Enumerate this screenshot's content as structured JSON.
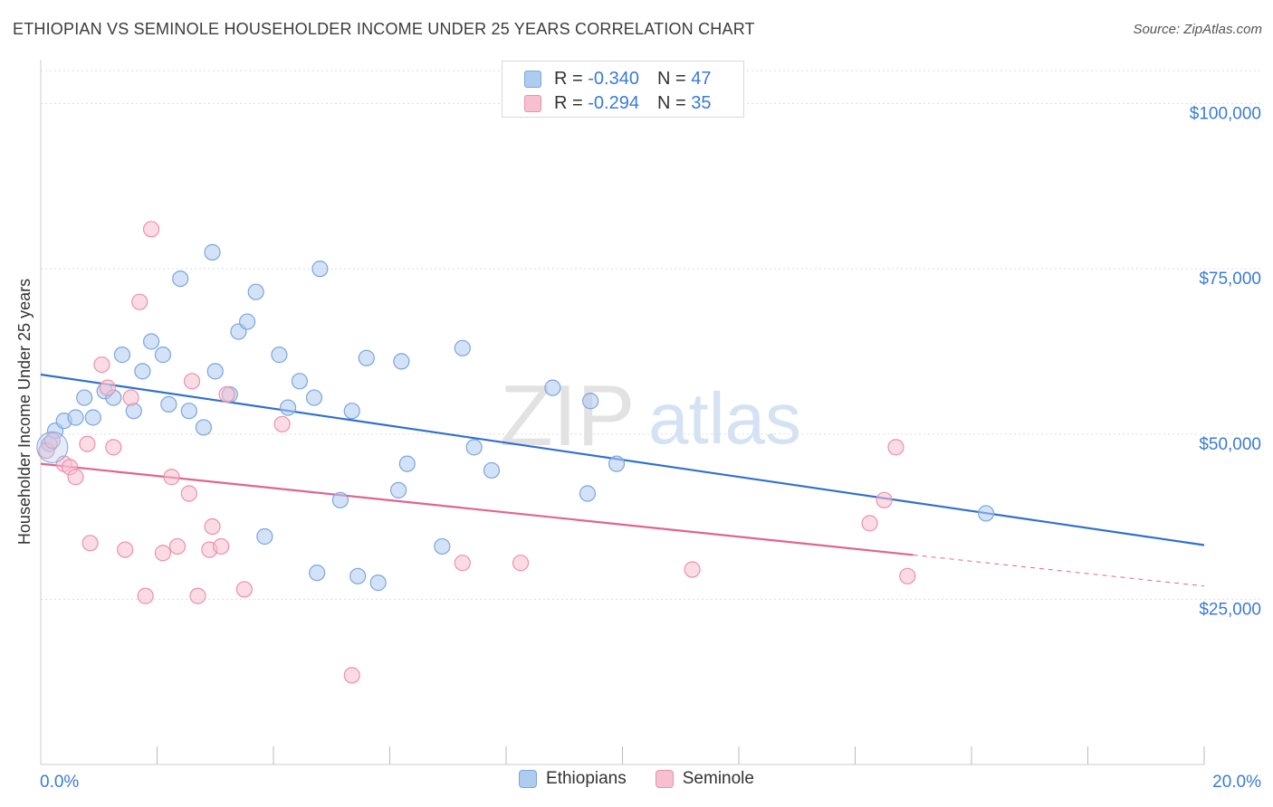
{
  "title": "ETHIOPIAN VS SEMINOLE HOUSEHOLDER INCOME UNDER 25 YEARS CORRELATION CHART",
  "source": "Source: ZipAtlas.com",
  "watermark": {
    "zip": "ZIP",
    "atlas": "atlas"
  },
  "colors": {
    "blue_fill": "#aecbf0",
    "blue_stroke": "#7ba6dd",
    "blue_line": "#2f6fd1",
    "pink_fill": "#f7c0d0",
    "pink_stroke": "#ec90ab",
    "pink_line": "#e0648f",
    "axis_text": "#3a7bd5",
    "grid": "#dddddd"
  },
  "legend": {
    "rows": [
      {
        "r_label": "R =",
        "r_value": "-0.340",
        "n_label": "N =",
        "n_value": "47"
      },
      {
        "r_label": "R =",
        "r_value": "-0.294",
        "n_label": "N =",
        "n_value": "35"
      }
    ]
  },
  "chart_data": {
    "type": "scatter",
    "title": "ETHIOPIAN VS SEMINOLE HOUSEHOLDER INCOME UNDER 25 YEARS CORRELATION CHART",
    "xlabel": "",
    "ylabel": "Householder Income Under 25 years",
    "xlim": [
      0,
      20
    ],
    "ylim": [
      0,
      105000
    ],
    "x_tick_labels": [
      "0.0%",
      "20.0%"
    ],
    "y_ticks": [
      25000,
      50000,
      75000,
      100000
    ],
    "y_tick_labels": [
      "$25,000",
      "$50,000",
      "$75,000",
      "$100,000"
    ],
    "grid": true,
    "legend_position": "top-center",
    "series": [
      {
        "name": "Ethiopians",
        "points": [
          [
            0.15,
            48500
          ],
          [
            0.25,
            50500
          ],
          [
            0.4,
            52000
          ],
          [
            0.6,
            52500
          ],
          [
            0.75,
            55500
          ],
          [
            0.9,
            52500
          ],
          [
            1.1,
            56500
          ],
          [
            1.25,
            55500
          ],
          [
            1.4,
            62000
          ],
          [
            1.6,
            53500
          ],
          [
            1.75,
            59500
          ],
          [
            1.9,
            64000
          ],
          [
            2.1,
            62000
          ],
          [
            2.2,
            54500
          ],
          [
            2.4,
            73500
          ],
          [
            2.55,
            53500
          ],
          [
            2.8,
            51000
          ],
          [
            2.95,
            77500
          ],
          [
            3.0,
            59500
          ],
          [
            3.25,
            56000
          ],
          [
            3.4,
            65500
          ],
          [
            3.55,
            67000
          ],
          [
            3.7,
            71500
          ],
          [
            3.85,
            34500
          ],
          [
            4.1,
            62000
          ],
          [
            4.25,
            54000
          ],
          [
            4.45,
            58000
          ],
          [
            4.7,
            55500
          ],
          [
            4.75,
            29000
          ],
          [
            4.8,
            75000
          ],
          [
            5.15,
            40000
          ],
          [
            5.35,
            53500
          ],
          [
            5.45,
            28500
          ],
          [
            5.6,
            61500
          ],
          [
            5.8,
            27500
          ],
          [
            6.15,
            41500
          ],
          [
            6.2,
            61000
          ],
          [
            6.3,
            45500
          ],
          [
            6.9,
            33000
          ],
          [
            7.25,
            63000
          ],
          [
            7.45,
            48000
          ],
          [
            7.75,
            44500
          ],
          [
            8.8,
            57000
          ],
          [
            9.4,
            41000
          ],
          [
            9.45,
            55000
          ],
          [
            9.9,
            45500
          ],
          [
            16.25,
            38000
          ]
        ],
        "trend": {
          "x": [
            0,
            20
          ],
          "y": [
            59000,
            33200
          ]
        }
      },
      {
        "name": "Seminole",
        "points": [
          [
            0.1,
            47500
          ],
          [
            0.2,
            49000
          ],
          [
            0.4,
            45500
          ],
          [
            0.5,
            45000
          ],
          [
            0.6,
            43500
          ],
          [
            0.8,
            48500
          ],
          [
            0.85,
            33500
          ],
          [
            1.05,
            60500
          ],
          [
            1.15,
            57000
          ],
          [
            1.25,
            48000
          ],
          [
            1.45,
            32500
          ],
          [
            1.55,
            55500
          ],
          [
            1.7,
            70000
          ],
          [
            1.8,
            25500
          ],
          [
            1.9,
            81000
          ],
          [
            2.1,
            32000
          ],
          [
            2.25,
            43500
          ],
          [
            2.35,
            33000
          ],
          [
            2.55,
            41000
          ],
          [
            2.6,
            58000
          ],
          [
            2.7,
            25500
          ],
          [
            2.9,
            32500
          ],
          [
            2.95,
            36000
          ],
          [
            3.1,
            33000
          ],
          [
            3.2,
            56000
          ],
          [
            3.5,
            26500
          ],
          [
            4.15,
            51500
          ],
          [
            5.35,
            13500
          ],
          [
            7.25,
            30500
          ],
          [
            8.25,
            30500
          ],
          [
            11.2,
            29500
          ],
          [
            14.25,
            36500
          ],
          [
            14.5,
            40000
          ],
          [
            14.7,
            48000
          ],
          [
            14.9,
            28500
          ]
        ],
        "trend": {
          "x": [
            0,
            15.0
          ],
          "y": [
            45500,
            31700
          ]
        },
        "trend_dashed": {
          "x": [
            15.0,
            20
          ],
          "y": [
            31700,
            27000
          ]
        }
      }
    ]
  }
}
